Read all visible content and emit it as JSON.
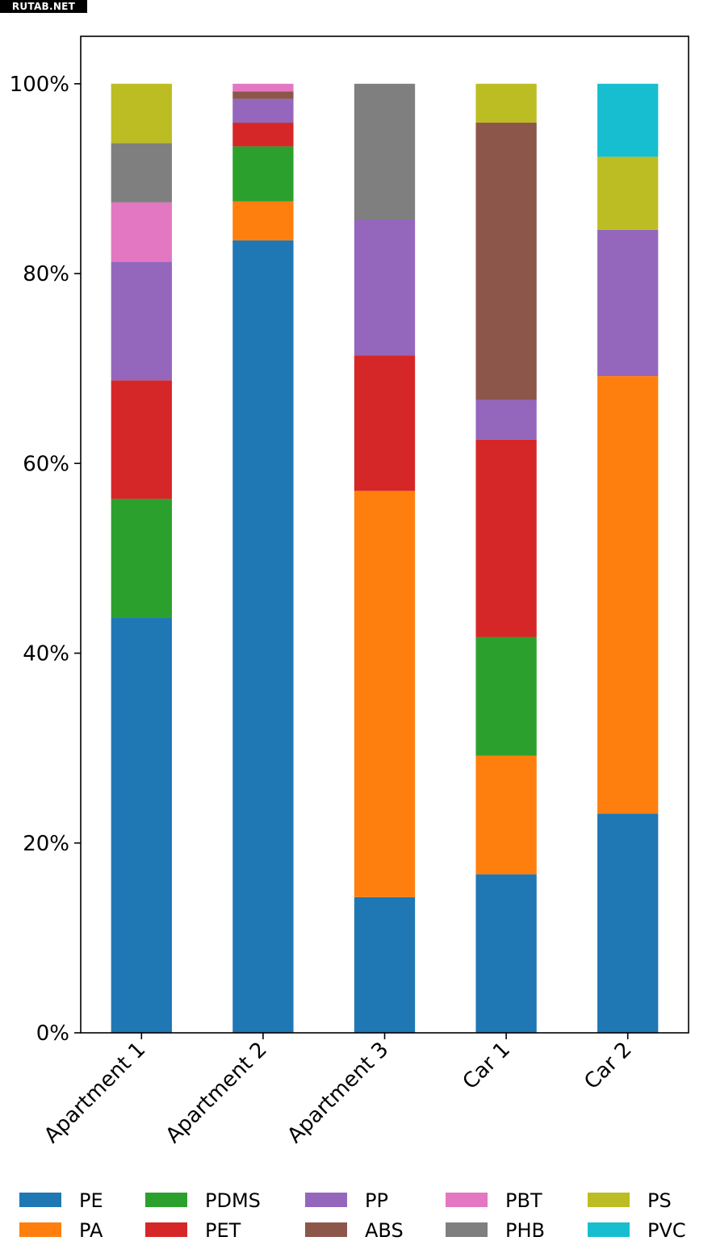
{
  "watermark": "RUTAB.NET",
  "chart_data": {
    "type": "bar",
    "stacked": true,
    "categories": [
      "Apartment 1",
      "Apartment 2",
      "Apartment 3",
      "Car 1",
      "Car 2"
    ],
    "ylim": [
      0,
      105
    ],
    "yticks": [
      0,
      20,
      40,
      60,
      80,
      100
    ],
    "ytick_labels": [
      "0%",
      "20%",
      "40%",
      "60%",
      "80%",
      "100%"
    ],
    "legend_position": "bottom",
    "series": [
      {
        "name": "PE",
        "color": "#1f77b4",
        "values": [
          43.75,
          83.5,
          14.3,
          16.7,
          23.1
        ]
      },
      {
        "name": "PA",
        "color": "#ff7f0e",
        "values": [
          0,
          4.1,
          42.8,
          12.5,
          46.1
        ]
      },
      {
        "name": "PDMS",
        "color": "#2ca02c",
        "values": [
          12.5,
          5.8,
          0,
          12.5,
          0
        ]
      },
      {
        "name": "PET",
        "color": "#d62728",
        "values": [
          12.5,
          2.5,
          14.3,
          20.8,
          0
        ]
      },
      {
        "name": "PP",
        "color": "#9467bd",
        "values": [
          12.5,
          2.5,
          14.3,
          4.2,
          15.4
        ]
      },
      {
        "name": "ABS",
        "color": "#8c564b",
        "values": [
          0,
          0.8,
          0,
          29.2,
          0
        ]
      },
      {
        "name": "PBT",
        "color": "#e377c2",
        "values": [
          6.25,
          0.8,
          0,
          0,
          0
        ]
      },
      {
        "name": "PHB",
        "color": "#7f7f7f",
        "values": [
          6.25,
          0,
          14.3,
          0,
          0
        ]
      },
      {
        "name": "PS",
        "color": "#bcbd22",
        "values": [
          6.25,
          0,
          0,
          4.1,
          7.7
        ]
      },
      {
        "name": "PVC",
        "color": "#17becf",
        "values": [
          0,
          0,
          0,
          0,
          7.7
        ]
      }
    ]
  }
}
